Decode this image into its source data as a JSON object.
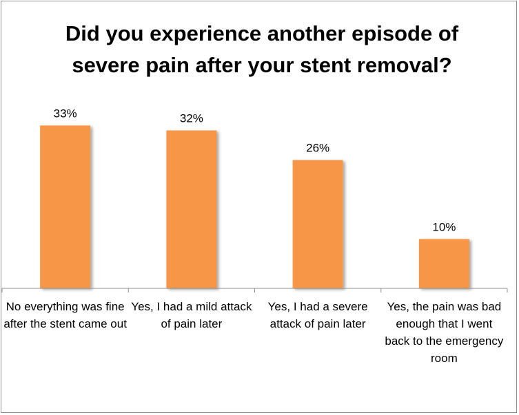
{
  "chart_data": {
    "type": "bar",
    "title": "Did you experience another episode of severe pain after your stent removal?",
    "categories": [
      "No everything was fine after the stent came out",
      "Yes, I had a mild attack of pain later",
      "Yes, I had a severe attack of pain later",
      "Yes, the pain was bad enough that I went back to the emergency room"
    ],
    "values": [
      33,
      32,
      26,
      10
    ],
    "data_labels": [
      "33%",
      "32%",
      "26%",
      "10%"
    ],
    "xlabel": "",
    "ylabel": "",
    "ylim": [
      0,
      35
    ],
    "grid": false,
    "legend": "none",
    "bar_color": "#F79646"
  }
}
